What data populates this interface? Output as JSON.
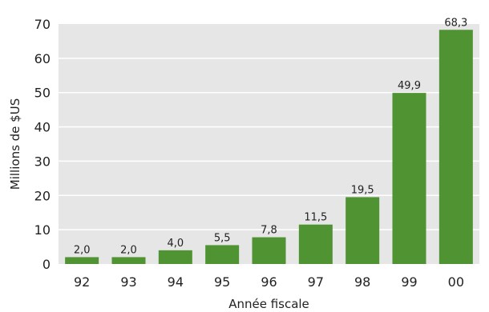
{
  "chart_data": {
    "type": "bar",
    "categories": [
      "92",
      "93",
      "94",
      "95",
      "96",
      "97",
      "98",
      "99",
      "00"
    ],
    "values": [
      2.0,
      2.0,
      4.0,
      5.5,
      7.8,
      11.5,
      19.5,
      49.9,
      68.3
    ],
    "data_labels": [
      "2,0",
      "2,0",
      "4,0",
      "5,5",
      "7,8",
      "11,5",
      "19,5",
      "49,9",
      "68,3"
    ],
    "xlabel": "Année fiscale",
    "ylabel": "Millions de $US",
    "ylim": [
      0,
      70
    ],
    "yticks": [
      0,
      10,
      20,
      30,
      40,
      50,
      60,
      70
    ],
    "ytick_labels": [
      "0",
      "10",
      "20",
      "30",
      "40",
      "50",
      "60",
      "70"
    ],
    "grid": true,
    "colors": {
      "bar": "#4f9332",
      "plot_background": "#e6e6e6",
      "gridline": "#ffffff"
    }
  }
}
